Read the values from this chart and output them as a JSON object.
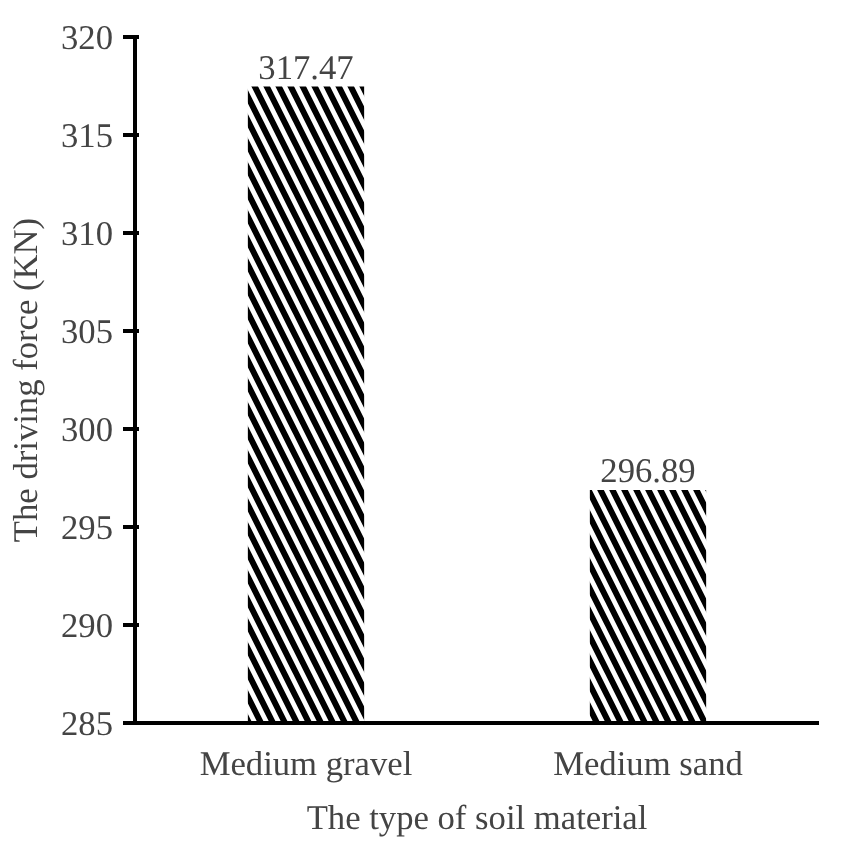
{
  "chart_data": {
    "type": "bar",
    "categories": [
      "Medium gravel",
      "Medium sand"
    ],
    "values": [
      317.47,
      296.89
    ],
    "color": "#000000",
    "ylim": [
      285,
      320
    ],
    "yticks": [
      285,
      290,
      295,
      300,
      305,
      310,
      315,
      320
    ],
    "xlabel": "The type of soil material",
    "ylabel": "The driving force (KN)",
    "data_labels": true
  }
}
